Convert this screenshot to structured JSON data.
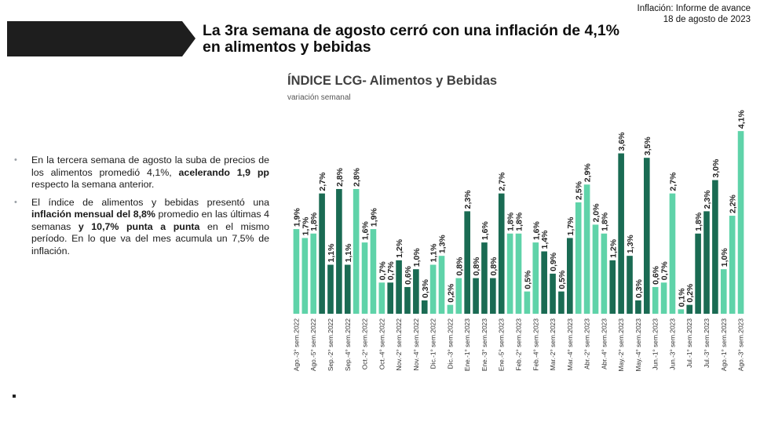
{
  "header": {
    "report_line1": "Inflación: Informe de avance",
    "report_line2": "18 de agosto de 2023",
    "headline_line1": "La 3ra semana de agosto cerró con una inflación de 4,1%",
    "headline_line2": "en alimentos y bebidas"
  },
  "bullets": [
    {
      "parts": [
        {
          "text": "En la tercera semana de agosto la suba de precios de los alimentos promedió 4,1%, ",
          "bold": false
        },
        {
          "text": "acelerando 1,9 pp",
          "bold": true
        },
        {
          "text": " respecto la semana anterior.",
          "bold": false
        }
      ]
    },
    {
      "parts": [
        {
          "text": "El índice de alimentos y bebidas presentó una ",
          "bold": false
        },
        {
          "text": "inflación mensual del 8,8%",
          "bold": true
        },
        {
          "text": " promedio en las últimas 4 semanas ",
          "bold": false
        },
        {
          "text": "y 10,7% punta a punta",
          "bold": true
        },
        {
          "text": " en el mismo período. En lo que va del mes acumula un 7,5% de inflación.",
          "bold": false
        }
      ]
    }
  ],
  "colors": {
    "light": "#5fd3a9",
    "dark": "#1a6b53",
    "banner": "#1e1e1e"
  },
  "chart_data": {
    "type": "bar",
    "title": "ÍNDICE LCG- Alimentos y Bebidas",
    "subtitle": "variación semanal",
    "ylim": [
      0,
      4.6
    ],
    "grid": false,
    "categories": [
      "Ago.-3° sem.2022",
      "",
      "Ago.-5° sem.2022",
      "",
      "Sep.-2° sem.2022",
      "",
      "Sep.-4° sem.2022",
      "",
      "Oct.-2° sem.2022",
      "",
      "Oct.-4° sem.2022",
      "",
      "Nov.-2° sem.2022",
      "",
      "Nov.-4° sem.2022",
      "",
      "Dic.-1° sem.2022",
      "",
      "Dic.-3° sem.2022",
      "",
      "Ene.-1° sem.2023",
      "",
      "Ene.-3° sem.2023",
      "",
      "Ene.-5° sem.2023",
      "",
      "Feb.-2° sem.2023",
      "",
      "Feb.-4° sem.2023",
      "",
      "Mar.-2° sem.2023",
      "",
      "Mar.-4° sem.2023",
      "",
      "Abr.-2° sem.2023",
      "",
      "Abr.-4° sem.2023",
      "",
      "May.-2° sem.2023",
      "",
      "May.-4° sem.2023",
      "",
      "Jun.-1° sem.2023",
      "",
      "Jun.-3° sem.2023",
      "",
      "Jul.-1° sem.2023",
      "",
      "Jul.-3° sem.2023",
      "",
      "Ago.-1° sem.2023",
      "",
      "Ago.-3° sem.2023"
    ],
    "values": [
      1.9,
      1.7,
      1.8,
      2.7,
      1.1,
      2.8,
      1.1,
      2.8,
      1.6,
      1.9,
      0.7,
      0.7,
      1.2,
      0.6,
      1.0,
      0.3,
      1.1,
      1.3,
      0.2,
      0.8,
      2.3,
      0.8,
      1.6,
      0.8,
      2.7,
      1.8,
      1.8,
      0.5,
      1.6,
      1.4,
      0.9,
      0.5,
      1.7,
      2.5,
      2.9,
      2.0,
      1.8,
      1.2,
      3.6,
      1.3,
      0.3,
      3.5,
      0.6,
      0.7,
      2.7,
      0.1,
      0.2,
      1.8,
      2.3,
      3.0,
      1.0,
      2.2,
      4.1
    ],
    "labels": [
      "1,9%",
      "1,7%",
      "1,8%",
      "2,7%",
      "1,1%",
      "2,8%",
      "1,1%",
      "2,8%",
      "1,6%",
      "1,9%",
      "0,7%",
      "0,7%",
      "1,2%",
      "0,6%",
      "1,0%",
      "0,3%",
      "1,1%",
      "1,3%",
      "0,2%",
      "0,8%",
      "2,3%",
      "0,8%",
      "1,6%",
      "0,8%",
      "2,7%",
      "1,8%",
      "1,8%",
      "0,5%",
      "1,6%",
      "1,4%",
      "0,9%",
      "0,5%",
      "1,7%",
      "2,5%",
      "2,9%",
      "2,0%",
      "1,8%",
      "1,2%",
      "3,6%",
      "1,3%",
      "0,3%",
      "3,5%",
      "0,6%",
      "0,7%",
      "2,7%",
      "0,1%",
      "0,2%",
      "1,8%",
      "2,3%",
      "3,0%",
      "1,0%",
      "2,2%",
      "4,1%"
    ],
    "tones": [
      "l",
      "l",
      "l",
      "d",
      "d",
      "d",
      "d",
      "l",
      "l",
      "l",
      "l",
      "d",
      "d",
      "d",
      "d",
      "d",
      "l",
      "l",
      "l",
      "l",
      "d",
      "d",
      "d",
      "d",
      "d",
      "l",
      "l",
      "l",
      "l",
      "d",
      "d",
      "d",
      "d",
      "l",
      "l",
      "l",
      "l",
      "d",
      "d",
      "d",
      "d",
      "d",
      "l",
      "l",
      "l",
      "l",
      "d",
      "d",
      "d",
      "d",
      "l",
      "l",
      "l"
    ]
  }
}
